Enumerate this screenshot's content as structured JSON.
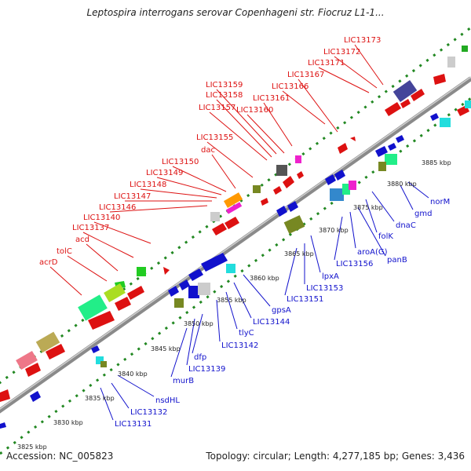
{
  "title": "Leptospira interrogans serovar Copenhageni str. Fiocruz L1-1...",
  "footer": {
    "accession": "Accession: NC_005823",
    "topology": "Topology: circular; Length: 4,277,185 bp; Genes: 3,436"
  },
  "colors": {
    "forward_label": "#dd1111",
    "reverse_label": "#1111cc",
    "backbone": "#888888",
    "ticks": "#228822"
  },
  "forward_genes": [
    "LIC13173",
    "LIC13172",
    "LIC13171",
    "LIC13167",
    "LIC13166",
    "LIC13161",
    "LIC13160",
    "LIC13159",
    "LIC13158",
    "LIC13157",
    "LIC13155",
    "dac",
    "LIC13150",
    "LIC13149",
    "LIC13148",
    "LIC13147",
    "LIC13146",
    "LIC13140",
    "LIC13137",
    "acd",
    "tolC",
    "acrD"
  ],
  "reverse_genes": [
    "norM",
    "gmd",
    "dnaC",
    "folK",
    "panB",
    "aroA(G)",
    "LIC13156",
    "lpxA",
    "LIC13153",
    "LIC13151",
    "gpsA",
    "LIC13144",
    "tlyC",
    "LIC13142",
    "dfp",
    "LIC13139",
    "murB",
    "nsdHL",
    "LIC13132",
    "LIC13131"
  ],
  "scale_labels": [
    "3885 kbp",
    "3880 kbp",
    "3875 kbp",
    "3870 kbp",
    "3865 kbp",
    "3860 kbp",
    "3855 kbp",
    "3850 kbp",
    "3845 kbp",
    "3840 kbp",
    "3835 kbp",
    "3830 kbp",
    "3825 kbp"
  ]
}
